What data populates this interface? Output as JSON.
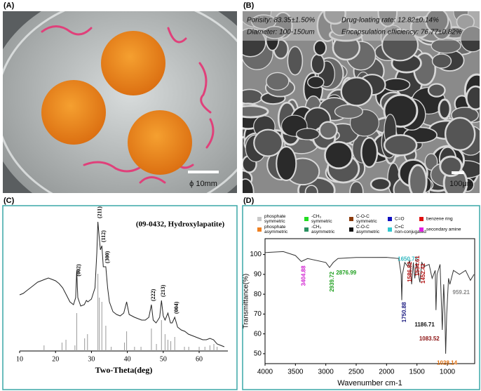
{
  "panel_labels": [
    "(A)",
    "(B)",
    "(C)",
    "(D)"
  ],
  "photo_a": {
    "scale_bar": "ϕ 10mm"
  },
  "sem_b": {
    "texts": [
      "Porisity: 83.35±1.50%",
      "Drug-loating rate: 12.82±0.14%",
      "Diameter: 100-150um",
      "Encapsulation efficiency: 76.77±0.82%"
    ],
    "scale_bar": "100μm"
  },
  "chart_data": [
    {
      "type": "line",
      "title": "(09-0432, Hydroxylapatite)",
      "x_label": "Two-Theta(deg)",
      "xlim": [
        10,
        68
      ],
      "xticks": [
        10,
        20,
        30,
        40,
        50,
        60
      ],
      "ylim": [
        0,
        100
      ],
      "color": "#222222",
      "x": [
        10,
        11,
        12,
        13,
        14,
        15,
        16,
        17,
        18,
        19,
        20,
        21,
        22,
        23,
        24,
        25,
        25.6,
        25.9,
        26.2,
        27,
        28,
        28.6,
        29,
        30,
        31,
        31.5,
        31.8,
        32.2,
        32.5,
        32.9,
        33.3,
        34,
        34.5,
        35,
        36,
        37,
        38,
        39,
        39.8,
        40.5,
        42,
        43,
        44,
        45,
        46,
        46.7,
        47.2,
        48,
        49,
        49.5,
        50,
        50.5,
        51.3,
        52,
        52.5,
        53.2,
        54,
        55,
        56,
        57,
        58,
        59,
        60,
        61,
        62,
        63,
        64,
        65,
        66,
        67
      ],
      "values": [
        40,
        41,
        43,
        45,
        47,
        49,
        50,
        51,
        52,
        51,
        50,
        48,
        45,
        40,
        35,
        33,
        38,
        57,
        38,
        32,
        33,
        36,
        35,
        37,
        45,
        70,
        92,
        80,
        72,
        75,
        60,
        60,
        45,
        35,
        28,
        26,
        25,
        27,
        35,
        26,
        24,
        23,
        22,
        22,
        24,
        33,
        22,
        20,
        24,
        36,
        25,
        22,
        27,
        20,
        20,
        24,
        17,
        15,
        14,
        12,
        11,
        10,
        9,
        8,
        8,
        9,
        8,
        5,
        4,
        3
      ],
      "reference": {
        "color": "#999999",
        "x": [
          16.8,
          21.8,
          22.9,
          25.4,
          25.9,
          28.1,
          28.9,
          31.8,
          32.2,
          32.9,
          34.0,
          35.5,
          39.2,
          39.8,
          42.0,
          43.8,
          46.7,
          48.1,
          49.5,
          50.5,
          51.3,
          52.1,
          53.2,
          55.9,
          57.1,
          60.0,
          61.6,
          63.0,
          64.1,
          65.0
        ],
        "values": [
          4,
          6,
          8,
          4,
          27,
          9,
          12,
          55,
          38,
          35,
          18,
          3,
          6,
          14,
          3,
          3,
          16,
          5,
          22,
          12,
          8,
          7,
          10,
          3,
          3,
          3,
          3,
          4,
          5,
          3
        ]
      },
      "annotations": [
        {
          "text": "(002)",
          "x": 26
        },
        {
          "text": "(211)",
          "x": 31.8
        },
        {
          "text": "(112)",
          "x": 32.9
        },
        {
          "text": "(300)",
          "x": 34
        },
        {
          "text": "(222)",
          "x": 46.7
        },
        {
          "text": "(213)",
          "x": 49.5
        },
        {
          "text": "(004)",
          "x": 53.2
        }
      ]
    },
    {
      "type": "line",
      "x_label": "Wavenumber cm-1",
      "y_label": "Transmittance(%)",
      "xlim": [
        4000,
        550
      ],
      "xticks": [
        4000,
        3500,
        3000,
        2500,
        2000,
        1500,
        1000
      ],
      "ylim": [
        45,
        108
      ],
      "yticks": [
        50,
        60,
        70,
        80,
        90,
        100
      ],
      "color": "#333333",
      "legend": [
        {
          "lines": [
            "phosphate",
            "symmetric"
          ],
          "color": "#c8c8c8"
        },
        {
          "lines": [
            "-CH₃",
            "symmetric"
          ],
          "color": "#22dd22"
        },
        {
          "lines": [
            "C-O-C",
            "symmetric"
          ],
          "color": "#8b3a0a"
        },
        {
          "lines": [
            "C=O"
          ],
          "color": "#1010c0"
        },
        {
          "lines": [
            "benzene ring"
          ],
          "color": "#e01010"
        },
        {
          "lines": [
            "phosphate",
            "asymmetric"
          ],
          "color": "#f08020"
        },
        {
          "lines": [
            "-CH₃",
            "asymmetric"
          ],
          "color": "#2a9060"
        },
        {
          "lines": [
            "C-O-C",
            "asymmetric"
          ],
          "color": "#111111"
        },
        {
          "lines": [
            "C=C",
            "non-conjugated"
          ],
          "color": "#30c8d0"
        },
        {
          "lines": [
            "secondary amine"
          ],
          "color": "#e020e0"
        }
      ],
      "x": [
        4000,
        3700,
        3500,
        3404,
        3300,
        3000,
        2939,
        2877,
        2800,
        2500,
        2000,
        1800,
        1760,
        1750,
        1740,
        1700,
        1651,
        1620,
        1587,
        1560,
        1535,
        1510,
        1452,
        1420,
        1380,
        1300,
        1250,
        1200,
        1187,
        1170,
        1120,
        1083,
        1060,
        1040,
        1028,
        1010,
        980,
        959,
        900,
        800,
        700,
        620,
        560
      ],
      "values": [
        101,
        101.5,
        99.5,
        96.5,
        98,
        96,
        93.5,
        96,
        98,
        98.5,
        98.6,
        98,
        90,
        77,
        90,
        96,
        94,
        97,
        85,
        96,
        88,
        96,
        86,
        96,
        94,
        95,
        88,
        92,
        72,
        90,
        95,
        62,
        85,
        70,
        50,
        70,
        88,
        85,
        92,
        90,
        92,
        87,
        90
      ],
      "annotations": [
        {
          "value": 3404.88,
          "color": "#d020d0"
        },
        {
          "value": 2939.72,
          "color": "#20a020"
        },
        {
          "value": 2876.99,
          "color": "#20a020"
        },
        {
          "value": 1650.78,
          "color": "#30b8c0"
        },
        {
          "value": 1586.82,
          "color": "#b01010"
        },
        {
          "value": 1534.61,
          "color": "#b01010"
        },
        {
          "value": 1452.41,
          "color": "#b01010"
        },
        {
          "value": 1750.88,
          "color": "#1a1a80"
        },
        {
          "value": 1186.71,
          "color": "#111111"
        },
        {
          "value": 1083.52,
          "color": "#8b1010"
        },
        {
          "value": 1028.14,
          "color": "#e07010"
        },
        {
          "value": 959.21,
          "color": "#888888"
        }
      ]
    }
  ]
}
